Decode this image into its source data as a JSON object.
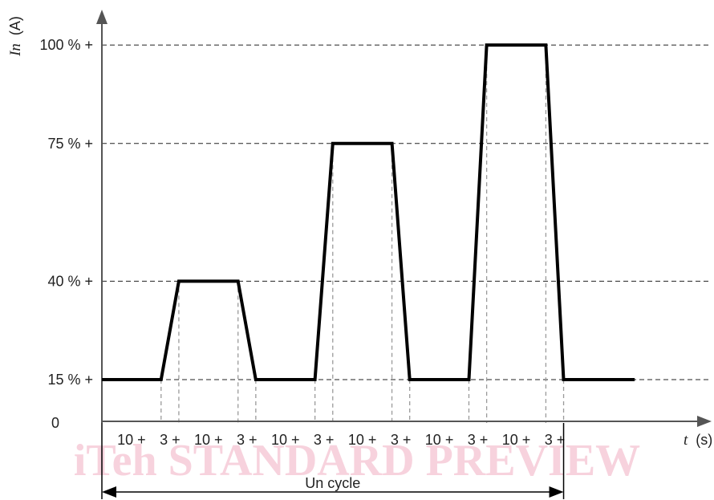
{
  "watermark_text": "iTeh STANDARD PREVIEW",
  "colors": {
    "profile": "#000000",
    "axis": "#555555",
    "grid": "#222222",
    "guides": "#9a9a9a",
    "watermark": "#f7d2dd"
  },
  "chart_data": {
    "type": "line",
    "title": "",
    "ylabel_symbol": "In",
    "ylabel_unit": "(A)",
    "xlabel_symbol": "t",
    "xlabel_unit": "(s)",
    "origin_label": "0",
    "y_ticks": [
      {
        "label": "15 % +",
        "value": 15
      },
      {
        "label": "40 % +",
        "value": 40
      },
      {
        "label": "75 % +",
        "value": 75
      },
      {
        "label": "100 % +",
        "value": 100
      }
    ],
    "ylim": [
      4,
      109
    ],
    "xlim": [
      0,
      103
    ],
    "segments": [
      {
        "label": "10 +",
        "duration": 10
      },
      {
        "label": "3 +",
        "duration": 3
      },
      {
        "label": "10 +",
        "duration": 10
      },
      {
        "label": "3 +",
        "duration": 3
      },
      {
        "label": "10 +",
        "duration": 10
      },
      {
        "label": "3 +",
        "duration": 3
      },
      {
        "label": "10 +",
        "duration": 10
      },
      {
        "label": "3 +",
        "duration": 3
      },
      {
        "label": "10 +",
        "duration": 10
      },
      {
        "label": "3 +",
        "duration": 3
      },
      {
        "label": "10 +",
        "duration": 10
      },
      {
        "label": "3 +",
        "duration": 3
      }
    ],
    "series": [
      {
        "points": [
          [
            0,
            15
          ],
          [
            10,
            15
          ],
          [
            13,
            40
          ],
          [
            23,
            40
          ],
          [
            26,
            15
          ],
          [
            36,
            15
          ],
          [
            39,
            75
          ],
          [
            49,
            75
          ],
          [
            52,
            15
          ],
          [
            62,
            15
          ],
          [
            65,
            100
          ],
          [
            75,
            100
          ],
          [
            78,
            15
          ],
          [
            90,
            15
          ]
        ]
      }
    ],
    "cycle_label": "Un cycle",
    "cycle_range": [
      0,
      78
    ],
    "grid": "dashed horizontal at y ticks"
  }
}
